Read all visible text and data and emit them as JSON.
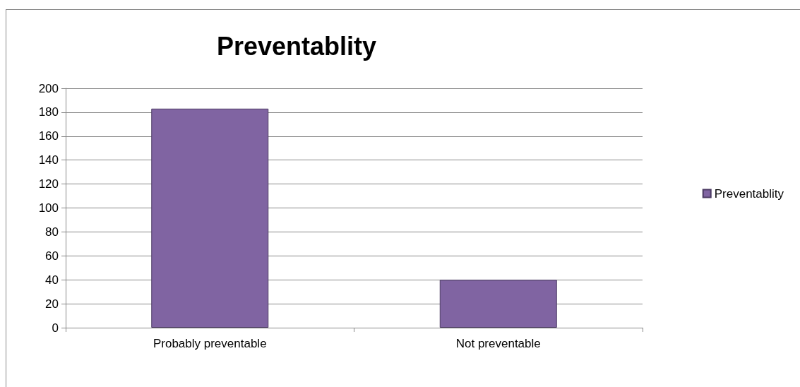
{
  "chart_data": {
    "type": "bar",
    "title": "Preventablity",
    "categories": [
      "Probably preventable",
      "Not preventable"
    ],
    "series": [
      {
        "name": "Preventablity",
        "color": "#8064a2",
        "values": [
          183,
          40
        ]
      }
    ],
    "ylim": [
      0,
      200
    ],
    "yticks": [
      0,
      20,
      40,
      60,
      80,
      100,
      120,
      140,
      160,
      180,
      200
    ],
    "grid": "y",
    "legend": "right"
  }
}
